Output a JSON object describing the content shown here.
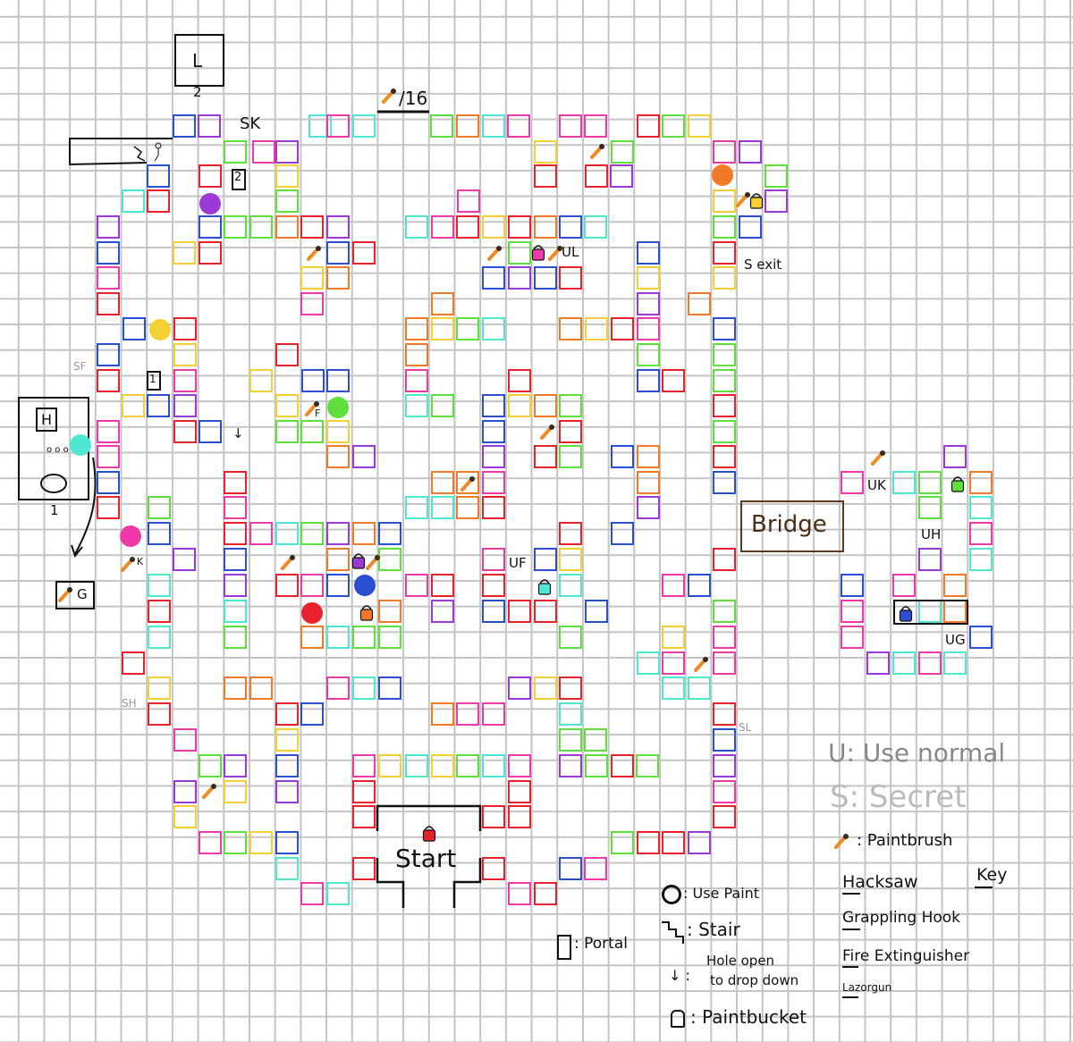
{
  "palette": {
    "red": "#e8222c",
    "green": "#5ee03c",
    "blue": "#2a4fd2",
    "purple": "#9b3ad8",
    "magenta": "#ee3aa8",
    "yellow": "#f4d032",
    "orange": "#f07a28",
    "cyan": "#4ee8d2"
  },
  "map": {
    "paintbrush_counter": "/16",
    "portal_top_label": "2",
    "portal_top_glyph": "L",
    "portal_small_2": "2",
    "portal_small_1": "1",
    "room_1_label": "1",
    "room_1_glyph": "H",
    "start_label": "Start",
    "bridge_label": "Bridge",
    "hole_arrow": "↓",
    "markers": {
      "sk": "SK",
      "ul": "UL",
      "s_exit": "S exit",
      "sf": "SF",
      "f": "F",
      "k": "K",
      "g": "G",
      "sh": "SH",
      "sl": "SL",
      "uf": "UF",
      "uk": "UK",
      "uh": "UH",
      "ug": "UG"
    },
    "paint_dots": [
      "purple",
      "yellow",
      "green",
      "cyan",
      "magenta",
      "blue",
      "red",
      "orange"
    ],
    "buckets": [
      "magenta",
      "yellow",
      "purple",
      "cyan",
      "orange",
      "green",
      "blue",
      "red"
    ]
  },
  "legend": {
    "use_normal": "U: Use normal",
    "secret": "S: Secret",
    "paintbrush": ": Paintbrush",
    "hacksaw": "Hacksaw",
    "key": "Key",
    "grappling_hook": "Grappling Hook",
    "fire_extinguisher": "Fire Extinguisher",
    "lazorgun": "Lazorgun",
    "use_paint": ": Use Paint",
    "stair": ": Stair",
    "portal": ": Portal",
    "hole_line1": "Hole open",
    "hole_line2": "to drop down",
    "hole_symbol": "↓ :",
    "paintbucket": ": Paintbucket"
  }
}
